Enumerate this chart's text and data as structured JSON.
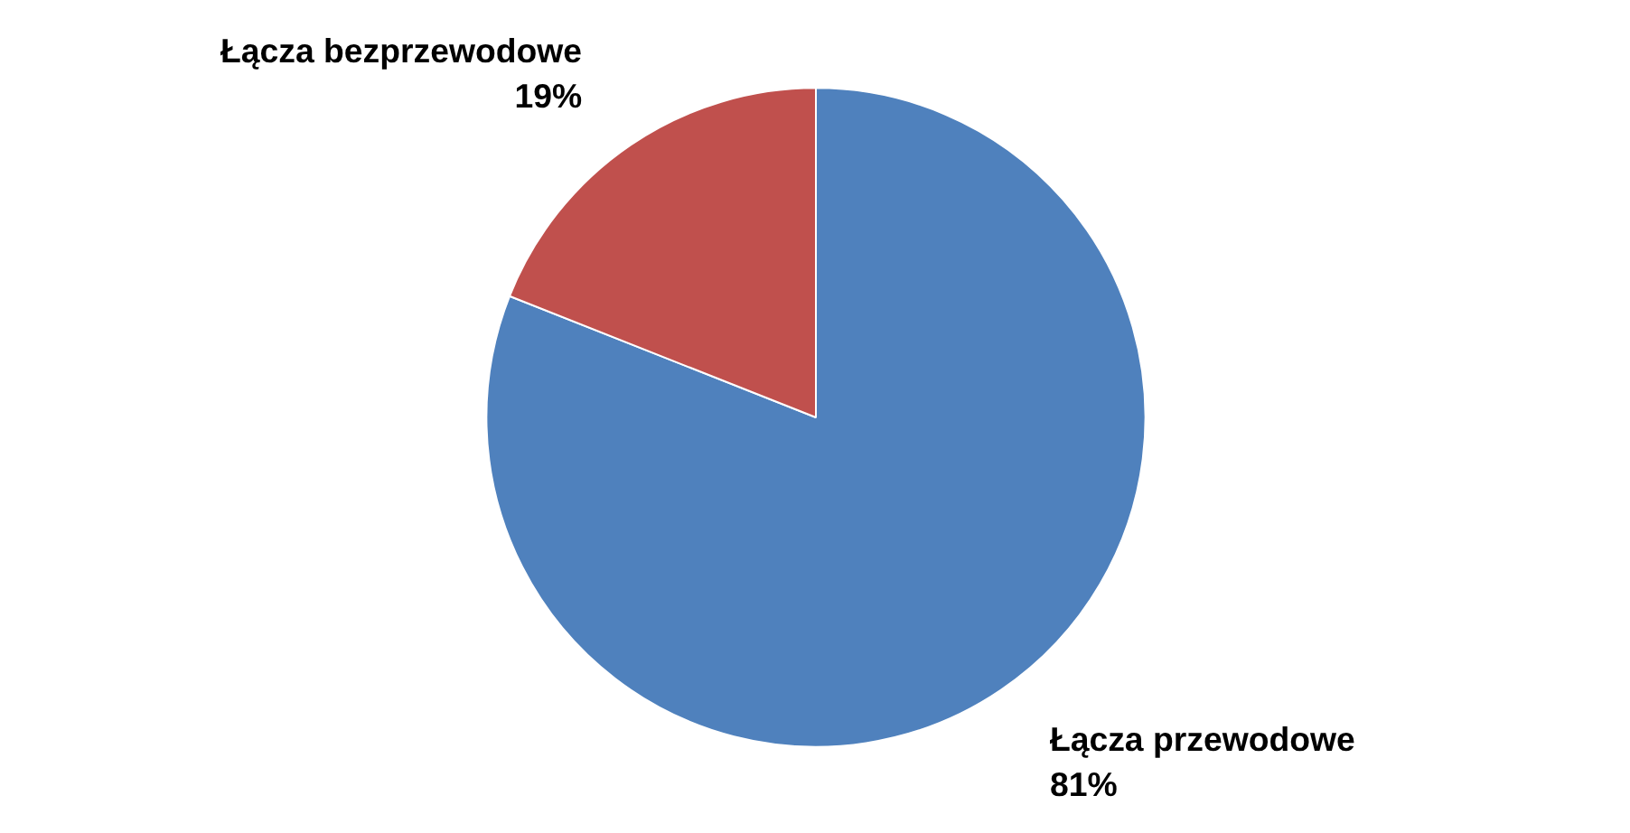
{
  "chart_data": {
    "type": "pie",
    "categories": [
      "Łącza przewodowe",
      "Łącza bezprzewodowe"
    ],
    "values": [
      81,
      19
    ],
    "colors": [
      "#4f81bd",
      "#c0504d"
    ],
    "value_labels": [
      "81%",
      "19%"
    ]
  }
}
